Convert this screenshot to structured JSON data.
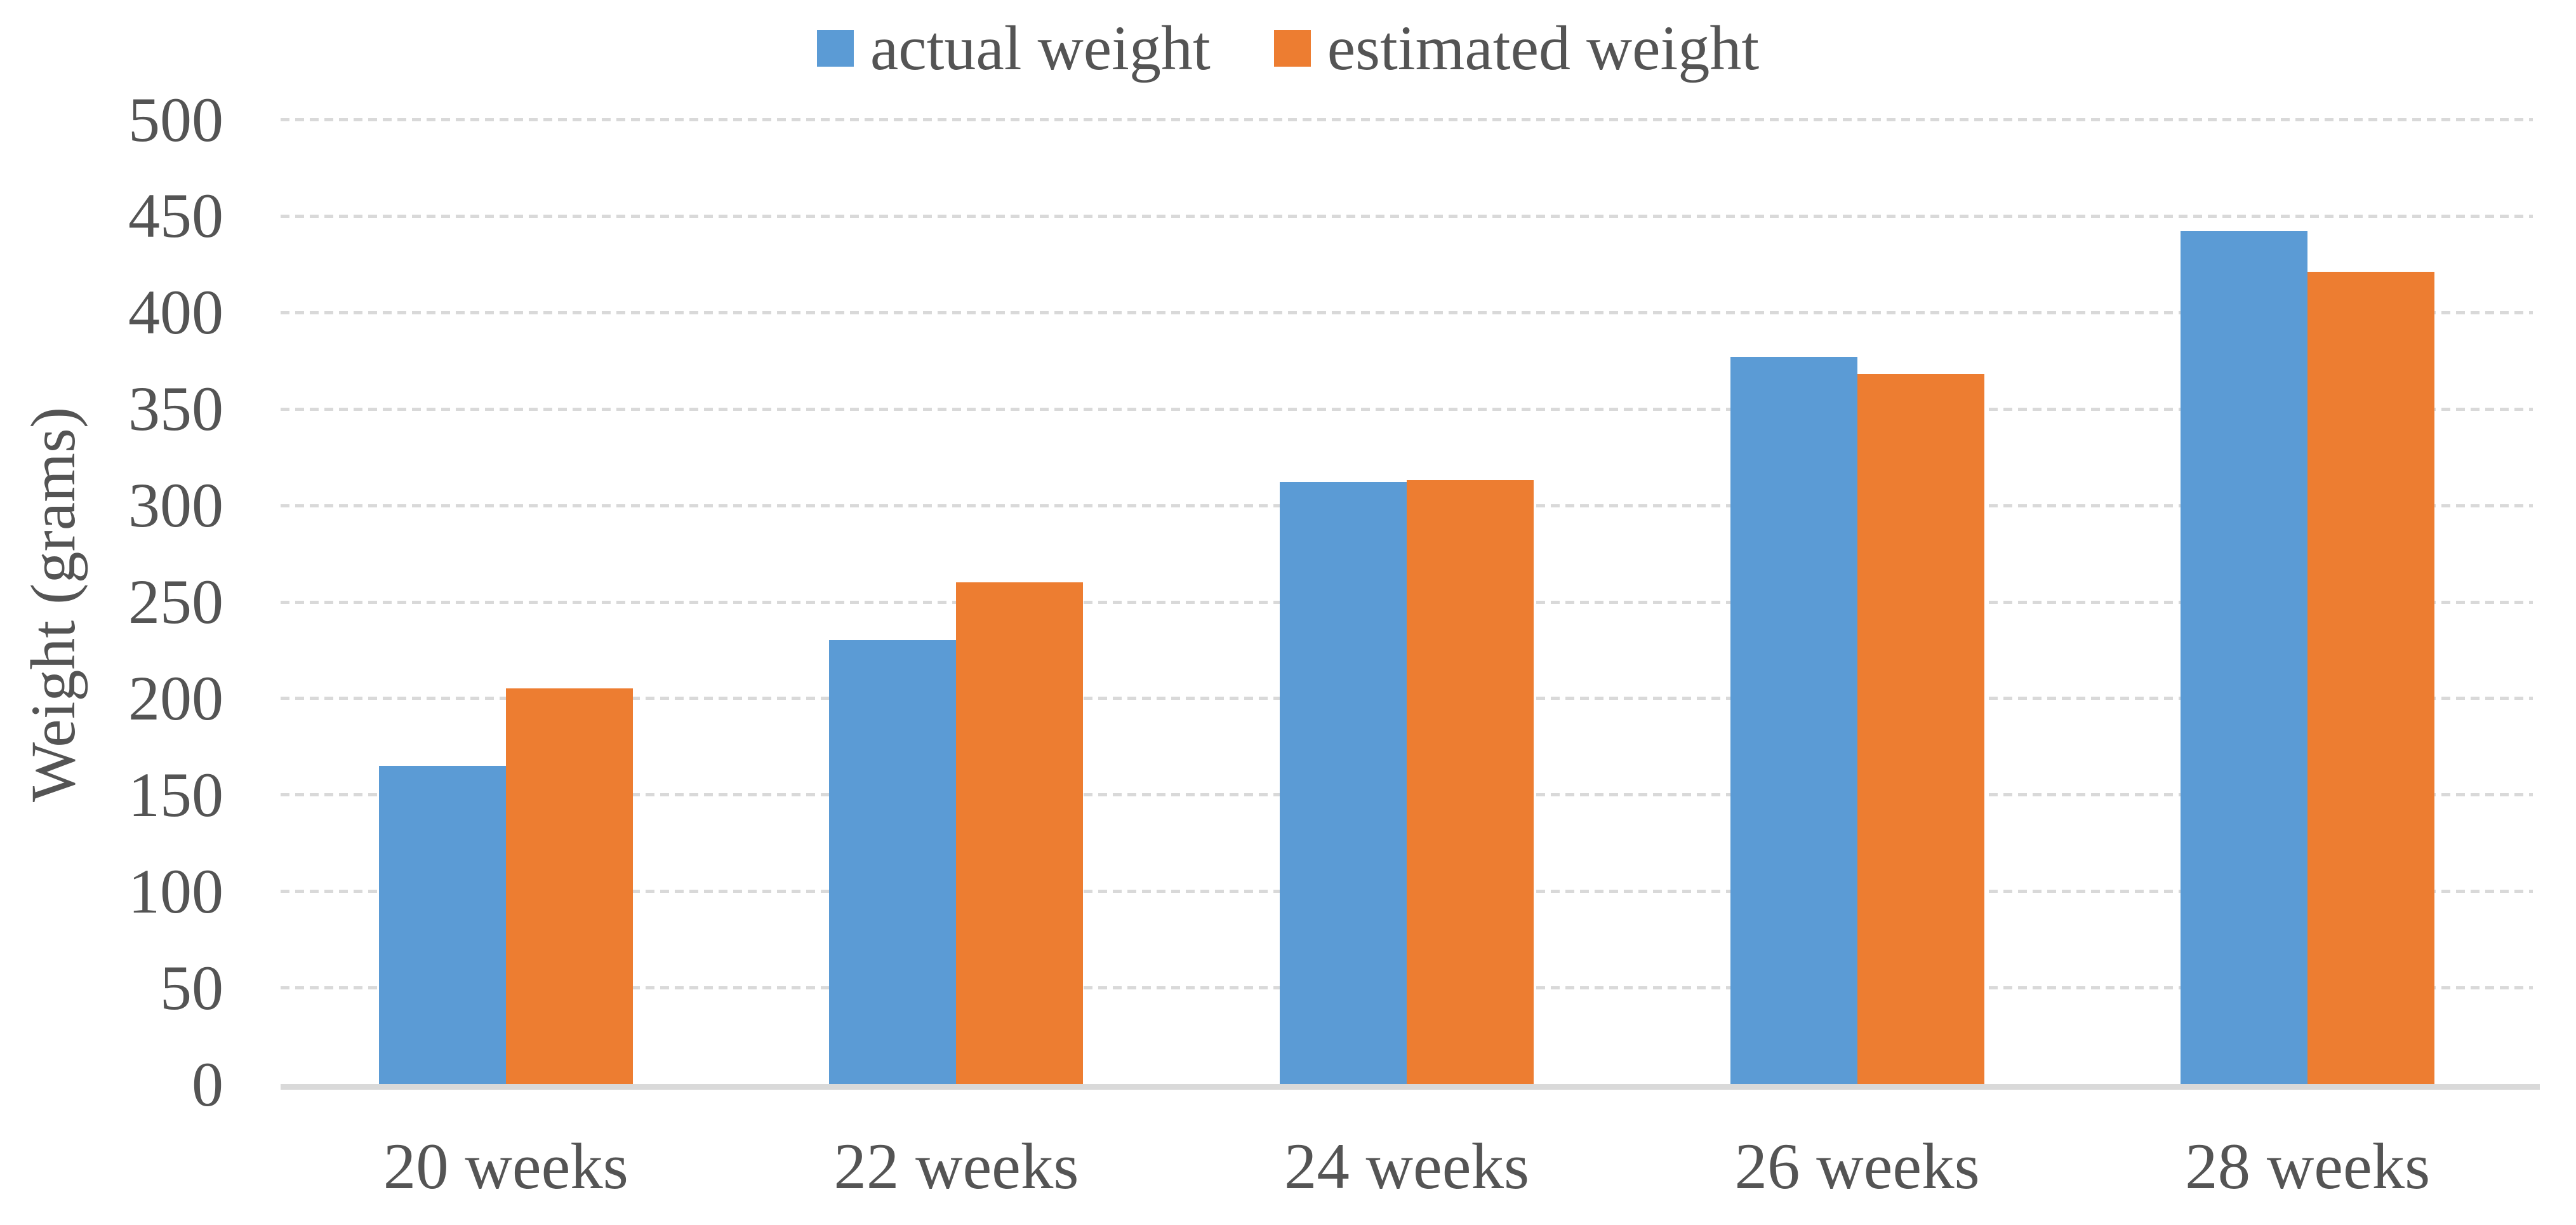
{
  "chart_data": {
    "type": "bar",
    "title": "",
    "categories": [
      "20 weeks",
      "22 weeks",
      "24 weeks",
      "26 weeks",
      "28 weeks"
    ],
    "series": [
      {
        "name": "actual weight",
        "color": "#5B9BD5",
        "values": [
          165,
          230,
          312,
          377,
          442
        ]
      },
      {
        "name": "estimated weight",
        "color": "#ED7D31",
        "values": [
          205,
          260,
          313,
          368,
          421
        ]
      }
    ],
    "xlabel": "",
    "ylabel": "Weight (grams)",
    "ylim": [
      0,
      500
    ],
    "ytick_step": 50,
    "ytick_labels": [
      "0",
      "50",
      "100",
      "150",
      "200",
      "250",
      "300",
      "350",
      "400",
      "450",
      "500"
    ],
    "grid": "horizontal-dashed",
    "legend_position": "top-center"
  },
  "legend": {
    "items": [
      {
        "label": "actual weight",
        "color": "#5B9BD5"
      },
      {
        "label": "estimated weight",
        "color": "#ED7D31"
      }
    ]
  },
  "colors": {
    "background": "#FFFFFF",
    "text": "#545454",
    "gridline": "#D9D9D9",
    "axis_line": "#D9D9D9",
    "bar_blue": "#5B9BD5",
    "bar_orange": "#ED7D31"
  }
}
